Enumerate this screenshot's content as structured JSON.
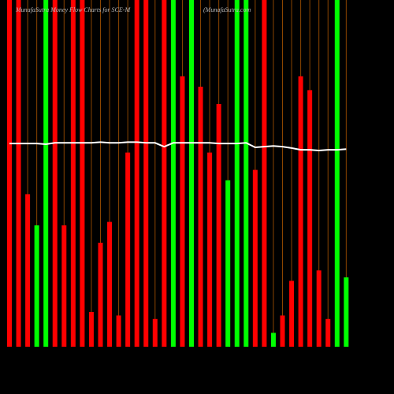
{
  "chart_data": {
    "type": "bar",
    "title": "MunafaSutra Money Flow Charts for SCE-M",
    "subtitle": "(MunafaSutra.com",
    "categories": [
      null,
      null,
      null,
      null,
      null,
      null,
      null,
      null,
      null,
      null,
      null,
      null,
      null,
      null,
      null,
      null,
      null,
      null,
      null,
      null,
      null,
      null,
      null,
      null,
      null,
      null,
      null,
      null,
      null,
      null,
      null,
      null,
      null,
      null,
      null,
      null,
      null,
      null
    ],
    "values": [
      100,
      100,
      44,
      35,
      100,
      100,
      35,
      100,
      100,
      10,
      30,
      36,
      9,
      56,
      100,
      100,
      8,
      100,
      100,
      78,
      100,
      75,
      56,
      70,
      48,
      100,
      100,
      51,
      100,
      4,
      9,
      19,
      78,
      74,
      22,
      8,
      100,
      20
    ],
    "colors": [
      "#ff0000",
      "#ff0000",
      "#ff0000",
      "#00ff00",
      "#00ff00",
      "#ff0000",
      "#ff0000",
      "#ff0000",
      "#ff0000",
      "#ff0000",
      "#ff0000",
      "#ff0000",
      "#ff0000",
      "#ff0000",
      "#ff0000",
      "#ff0000",
      "#ff0000",
      "#ff0000",
      "#00ff00",
      "#ff0000",
      "#00ff00",
      "#ff0000",
      "#ff0000",
      "#ff0000",
      "#00ff00",
      "#00ff00",
      "#00ff00",
      "#ff0000",
      "#ff0000",
      "#00ff00",
      "#ff0000",
      "#ff0000",
      "#ff0000",
      "#ff0000",
      "#ff0000",
      "#ff0000",
      "#00ff00",
      "#00ff00"
    ],
    "line": {
      "color": "#ffffff",
      "values": [
        58.6,
        58.6,
        58.6,
        58.6,
        58.4,
        58.8,
        58.8,
        58.8,
        58.8,
        58.8,
        59.0,
        58.8,
        58.8,
        59.0,
        59.0,
        58.8,
        58.8,
        57.7,
        58.8,
        58.8,
        58.8,
        58.8,
        58.8,
        58.6,
        58.6,
        58.6,
        58.8,
        57.5,
        57.7,
        57.9,
        57.7,
        57.3,
        56.8,
        56.8,
        56.6,
        56.8,
        56.8,
        57.0
      ]
    },
    "ylim": [
      0,
      100
    ],
    "slot_color": "#8b4500"
  }
}
